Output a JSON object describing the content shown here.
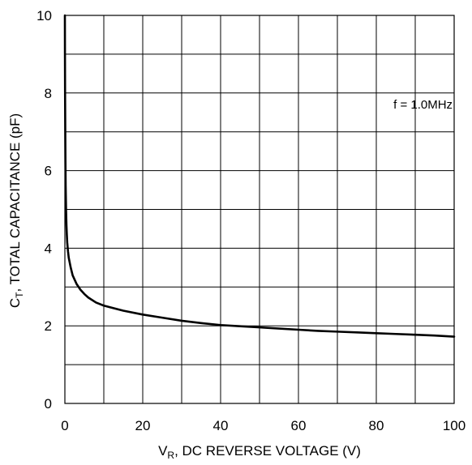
{
  "chart_data": {
    "type": "line",
    "title": "",
    "xlabel": {
      "main": "V",
      "subscript": "R",
      "rest": ", DC REVERSE VOLTAGE (V)"
    },
    "ylabel": {
      "main": "C",
      "subscript": "T",
      "rest": ", TOTAL CAPACITANCE (pF)"
    },
    "xlim": [
      0,
      100
    ],
    "ylim": [
      0,
      10
    ],
    "x_ticks": [
      0,
      20,
      40,
      60,
      80,
      100
    ],
    "y_ticks": [
      0,
      2,
      4,
      6,
      8,
      10
    ],
    "x_grid_step": 10,
    "y_grid_step": 1,
    "grid": true,
    "annotations": [
      {
        "text": "f = 1.0MHz",
        "x": 92,
        "y": 7.6
      }
    ],
    "series": [
      {
        "color": "#000000",
        "x": [
          0.0,
          0.02,
          0.05,
          0.1,
          0.15,
          0.2,
          0.3,
          0.4,
          0.5,
          0.6,
          0.8,
          1,
          1.5,
          2,
          3,
          4,
          5,
          6,
          8,
          10,
          15,
          20,
          25,
          30,
          35,
          40,
          45,
          50,
          55,
          60,
          65,
          70,
          75,
          80,
          85,
          90,
          95,
          100
        ],
        "y": [
          10.0,
          9.0,
          8.0,
          7.0,
          6.2,
          5.6,
          5.0,
          4.6,
          4.35,
          4.15,
          3.92,
          3.75,
          3.5,
          3.3,
          3.08,
          2.93,
          2.82,
          2.73,
          2.6,
          2.52,
          2.39,
          2.29,
          2.21,
          2.13,
          2.07,
          2.02,
          1.99,
          1.96,
          1.93,
          1.9,
          1.87,
          1.85,
          1.83,
          1.81,
          1.79,
          1.77,
          1.75,
          1.72
        ]
      }
    ]
  }
}
